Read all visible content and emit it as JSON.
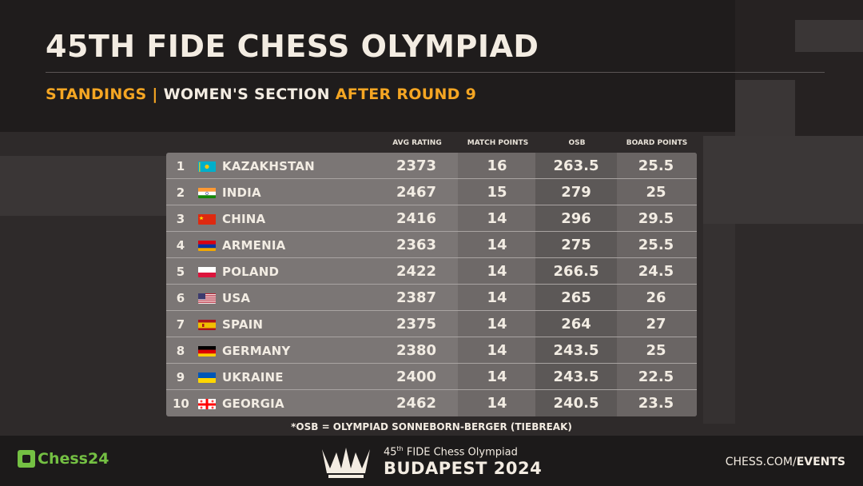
{
  "header": {
    "title": "45TH FIDE CHESS OLYMPIAD",
    "subtitle_part1": "STANDINGS |",
    "subtitle_part2": "WOMEN'S SECTION",
    "subtitle_part3": "AFTER ROUND 9"
  },
  "columns": {
    "avg_rating": "AVG RATING",
    "match_points": "MATCH POINTS",
    "osb": "OSB",
    "board_points": "BOARD POINTS"
  },
  "rows": [
    {
      "rank": "1",
      "flag": "kazakhstan-flag",
      "country": "KAZAKHSTAN",
      "avg": "2373",
      "mp": "16",
      "osb": "263.5",
      "bp": "25.5"
    },
    {
      "rank": "2",
      "flag": "india-flag",
      "country": "INDIA",
      "avg": "2467",
      "mp": "15",
      "osb": "279",
      "bp": "25"
    },
    {
      "rank": "3",
      "flag": "china-flag",
      "country": "CHINA",
      "avg": "2416",
      "mp": "14",
      "osb": "296",
      "bp": "29.5"
    },
    {
      "rank": "4",
      "flag": "armenia-flag",
      "country": "ARMENIA",
      "avg": "2363",
      "mp": "14",
      "osb": "275",
      "bp": "25.5"
    },
    {
      "rank": "5",
      "flag": "poland-flag",
      "country": "POLAND",
      "avg": "2422",
      "mp": "14",
      "osb": "266.5",
      "bp": "24.5"
    },
    {
      "rank": "6",
      "flag": "usa-flag",
      "country": "USA",
      "avg": "2387",
      "mp": "14",
      "osb": "265",
      "bp": "26"
    },
    {
      "rank": "7",
      "flag": "spain-flag",
      "country": "SPAIN",
      "avg": "2375",
      "mp": "14",
      "osb": "264",
      "bp": "27"
    },
    {
      "rank": "8",
      "flag": "germany-flag",
      "country": "GERMANY",
      "avg": "2380",
      "mp": "14",
      "osb": "243.5",
      "bp": "25"
    },
    {
      "rank": "9",
      "flag": "ukraine-flag",
      "country": "UKRAINE",
      "avg": "2400",
      "mp": "14",
      "osb": "243.5",
      "bp": "22.5"
    },
    {
      "rank": "10",
      "flag": "georgia-flag",
      "country": "GEORGIA",
      "avg": "2462",
      "mp": "14",
      "osb": "240.5",
      "bp": "23.5"
    }
  ],
  "footnote": "*OSB = OLYMPIAD SONNEBORN-BERGER (TIEBREAK)",
  "footer": {
    "brand": "Chess24",
    "event_line1_pre": "45",
    "event_line1_sup": "th",
    "event_line1_post": " FIDE Chess Olympiad",
    "event_line2": "BUDAPEST 2024",
    "site_prefix": "CHESS.COM/",
    "site_suffix": "EVENTS"
  },
  "colors": {
    "accent": "#f5a623",
    "brand_green": "#74c043"
  }
}
